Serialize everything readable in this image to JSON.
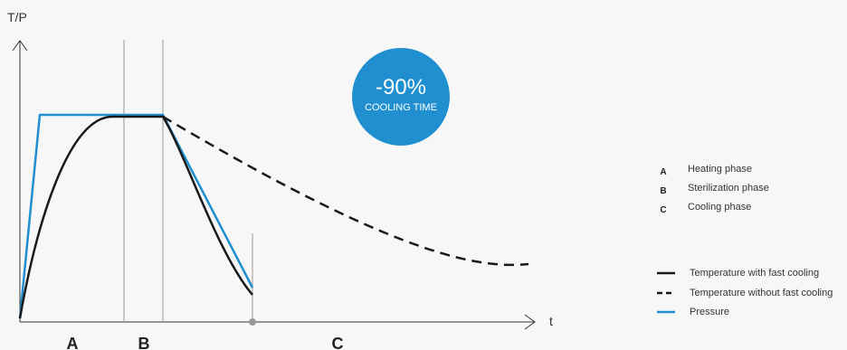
{
  "axes": {
    "y_label": "T/P",
    "x_label": "t"
  },
  "badge": {
    "value": "-90%",
    "caption": "COOLING TIME",
    "color": "#1f8fd0"
  },
  "phase_markers": [
    "A",
    "B",
    "C"
  ],
  "phase_legend": [
    {
      "letter": "A",
      "label": "Heating phase"
    },
    {
      "letter": "B",
      "label": "Sterilization phase"
    },
    {
      "letter": "C",
      "label": "Cooling phase"
    }
  ],
  "line_legend": [
    {
      "style": "solid",
      "color": "#1a1a1a",
      "label": "Temperature with fast cooling"
    },
    {
      "style": "dashed",
      "color": "#1a1a1a",
      "label": "Temperature without fast cooling"
    },
    {
      "style": "solid",
      "color": "#1f8fd0",
      "label": "Pressure"
    }
  ],
  "colors": {
    "temperature": "#1a1a1a",
    "pressure": "#1f8fd0",
    "dividers": "#999999"
  }
}
